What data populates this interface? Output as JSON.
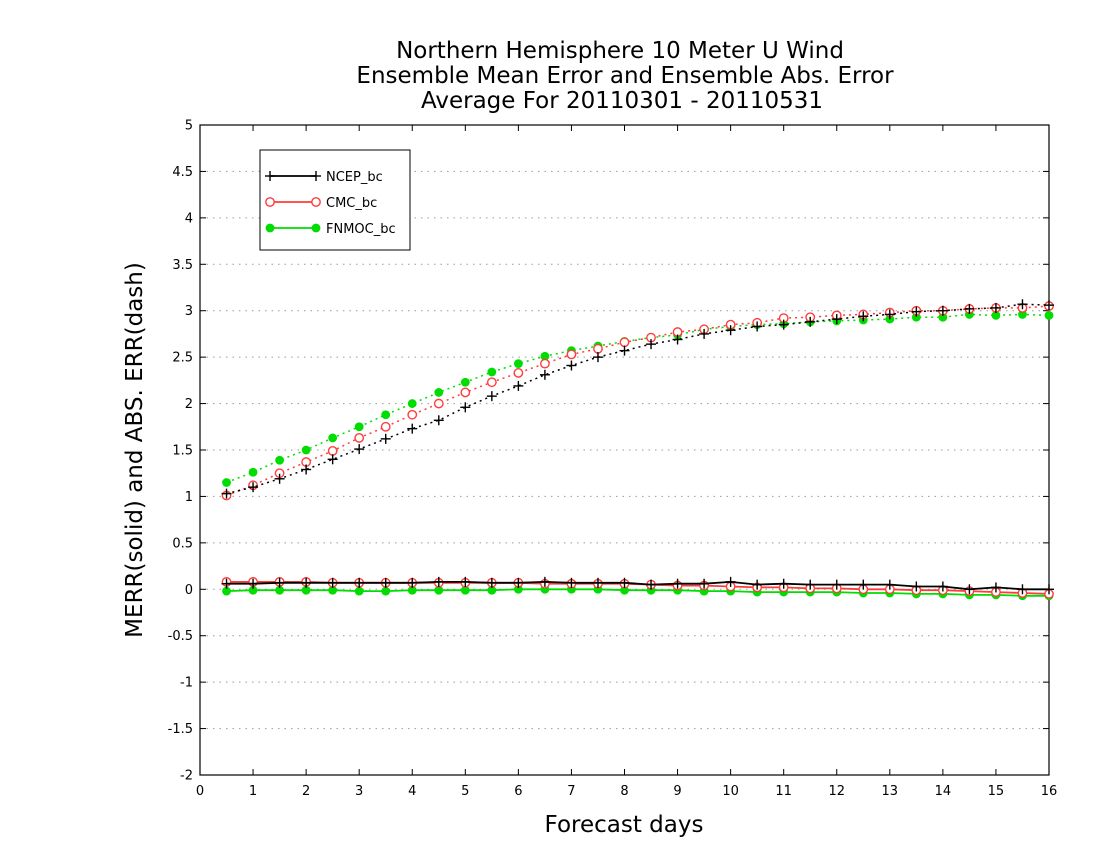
{
  "chart_data": {
    "type": "line",
    "title_lines": [
      "Northern Hemisphere 10 Meter U Wind",
      "Ensemble Mean Error and Ensemble Abs. Error",
      "Average For 20110301 - 20110531"
    ],
    "xlabel": "Forecast days",
    "ylabel": "MERR(solid) and ABS. ERR(dash)",
    "xlim": [
      0,
      16
    ],
    "ylim": [
      -2,
      5
    ],
    "xticks": [
      "0",
      "1",
      "2",
      "3",
      "4",
      "5",
      "6",
      "7",
      "8",
      "9",
      "10",
      "11",
      "12",
      "13",
      "14",
      "15",
      "16"
    ],
    "yticks": [
      "-2",
      "-1.5",
      "-1",
      "-0.5",
      "0",
      "0.5",
      "1",
      "1.5",
      "2",
      "2.5",
      "3",
      "3.5",
      "4",
      "4.5",
      "5"
    ],
    "grid": "horizontal-dotted",
    "legend_position": "top-left",
    "x": [
      0.5,
      1,
      1.5,
      2,
      2.5,
      3,
      3.5,
      4,
      4.5,
      5,
      5.5,
      6,
      6.5,
      7,
      7.5,
      8,
      8.5,
      9,
      9.5,
      10,
      10.5,
      11,
      11.5,
      12,
      12.5,
      13,
      13.5,
      14,
      14.5,
      15,
      15.5,
      16
    ],
    "series": [
      {
        "name": "NCEP_bc",
        "color": "#000000",
        "marker": "plus",
        "mean_error": [
          0.06,
          0.06,
          0.07,
          0.07,
          0.07,
          0.07,
          0.07,
          0.07,
          0.08,
          0.08,
          0.07,
          0.07,
          0.08,
          0.07,
          0.07,
          0.07,
          0.05,
          0.06,
          0.06,
          0.08,
          0.05,
          0.06,
          0.05,
          0.05,
          0.05,
          0.05,
          0.03,
          0.03,
          0.0,
          0.02,
          0.0,
          0.0
        ],
        "abs_error": [
          1.03,
          1.1,
          1.19,
          1.29,
          1.4,
          1.51,
          1.62,
          1.73,
          1.82,
          1.96,
          2.08,
          2.19,
          2.31,
          2.41,
          2.5,
          2.57,
          2.64,
          2.69,
          2.75,
          2.79,
          2.83,
          2.85,
          2.88,
          2.91,
          2.94,
          2.96,
          2.99,
          3.0,
          3.02,
          3.03,
          3.07,
          3.06
        ]
      },
      {
        "name": "CMC_bc",
        "color": "#ff3b3b",
        "marker": "open-circle",
        "mean_error": [
          0.08,
          0.08,
          0.08,
          0.08,
          0.07,
          0.07,
          0.07,
          0.07,
          0.07,
          0.07,
          0.07,
          0.07,
          0.06,
          0.06,
          0.06,
          0.06,
          0.05,
          0.04,
          0.04,
          0.03,
          0.02,
          0.02,
          0.01,
          0.01,
          0.0,
          0.0,
          -0.01,
          -0.01,
          -0.02,
          -0.03,
          -0.04,
          -0.05
        ],
        "abs_error": [
          1.01,
          1.12,
          1.25,
          1.37,
          1.49,
          1.63,
          1.75,
          1.88,
          2.0,
          2.12,
          2.23,
          2.33,
          2.43,
          2.53,
          2.59,
          2.66,
          2.71,
          2.77,
          2.8,
          2.85,
          2.87,
          2.92,
          2.93,
          2.95,
          2.96,
          2.98,
          3.0,
          3.0,
          3.02,
          3.03,
          3.03,
          3.05
        ]
      },
      {
        "name": "FNMOC_bc",
        "color": "#00dd00",
        "marker": "filled-circle",
        "mean_error": [
          -0.02,
          -0.01,
          -0.01,
          -0.01,
          -0.01,
          -0.02,
          -0.02,
          -0.01,
          -0.01,
          -0.01,
          -0.01,
          0.0,
          0.0,
          0.0,
          0.0,
          -0.01,
          -0.01,
          -0.01,
          -0.02,
          -0.02,
          -0.03,
          -0.03,
          -0.03,
          -0.03,
          -0.04,
          -0.04,
          -0.05,
          -0.05,
          -0.06,
          -0.06,
          -0.07,
          -0.07
        ],
        "abs_error": [
          1.15,
          1.26,
          1.39,
          1.5,
          1.63,
          1.75,
          1.88,
          2.0,
          2.12,
          2.23,
          2.34,
          2.43,
          2.51,
          2.57,
          2.62,
          2.67,
          2.71,
          2.74,
          2.8,
          2.83,
          2.85,
          2.86,
          2.88,
          2.89,
          2.9,
          2.91,
          2.93,
          2.93,
          2.96,
          2.95,
          2.96,
          2.95
        ]
      }
    ]
  }
}
